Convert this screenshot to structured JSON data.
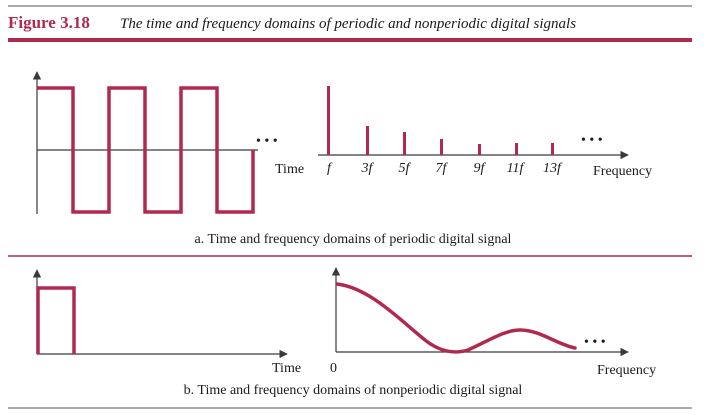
{
  "figure": {
    "number": "Figure 3.18",
    "title": "The time and frequency domains of periodic and nonperiodic digital signals"
  },
  "panel_a": {
    "time_axis_label": "Time",
    "freq_axis_label": "Frequency",
    "ellipsis": "• • •",
    "harmonic_labels": [
      "f",
      "3f",
      "5f",
      "7f",
      "9f",
      "11f",
      "13f"
    ],
    "caption": "a. Time and frequency domains of periodic digital signal"
  },
  "panel_b": {
    "time_axis_label": "Time",
    "freq_axis_label": "Frequency",
    "freq_origin_label": "0",
    "ellipsis": "• • •",
    "caption": "b. Time and frequency domains of nonperiodic digital signal"
  },
  "colors": {
    "signal": "#b0294f",
    "axis": "#3a3a3a",
    "rule": "#555555"
  }
}
